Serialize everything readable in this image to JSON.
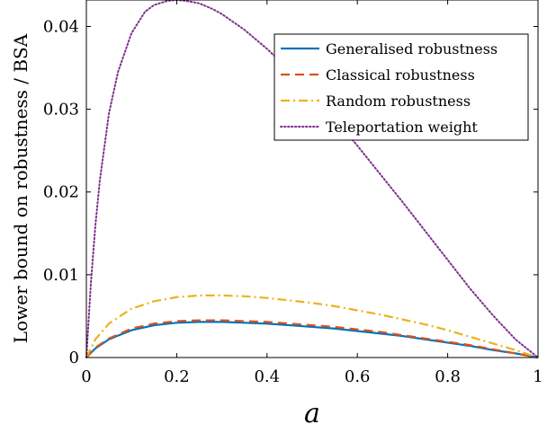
{
  "chart_data": {
    "type": "line",
    "xlabel": "a",
    "ylabel": "Lower bound on robustness / BSA",
    "xlim": [
      0,
      1
    ],
    "ylim": [
      0,
      0.0432
    ],
    "xticks": [
      0,
      0.2,
      0.4,
      0.6,
      0.8,
      1
    ],
    "xtick_labels": [
      "0",
      "0.2",
      "0.4",
      "0.6",
      "0.8",
      "1"
    ],
    "yticks": [
      0,
      0.01,
      0.02,
      0.03,
      0.04
    ],
    "ytick_labels": [
      "0",
      "0.01",
      "0.02",
      "0.03",
      "0.04"
    ],
    "grid": false,
    "legend_position": "top-right",
    "series": [
      {
        "name": "Generalised robustness",
        "color": "#0072BD",
        "dash": "solid",
        "x": [
          0,
          0.02,
          0.05,
          0.1,
          0.15,
          0.2,
          0.25,
          0.3,
          0.35,
          0.4,
          0.45,
          0.5,
          0.55,
          0.6,
          0.65,
          0.7,
          0.75,
          0.8,
          0.85,
          0.9,
          0.95,
          1
        ],
        "y": [
          0,
          0.0011,
          0.0022,
          0.0033,
          0.0039,
          0.0042,
          0.0043,
          0.0043,
          0.0042,
          0.0041,
          0.0039,
          0.0037,
          0.0035,
          0.0032,
          0.0029,
          0.0026,
          0.0022,
          0.0018,
          0.0014,
          0.0009,
          0.0005,
          0
        ]
      },
      {
        "name": "Classical robustness",
        "color": "#D95319",
        "dash": "dashed",
        "x": [
          0,
          0.02,
          0.05,
          0.1,
          0.15,
          0.2,
          0.25,
          0.3,
          0.35,
          0.4,
          0.45,
          0.5,
          0.55,
          0.6,
          0.65,
          0.7,
          0.75,
          0.8,
          0.85,
          0.9,
          0.95,
          1
        ],
        "y": [
          0,
          0.0012,
          0.0023,
          0.0035,
          0.0041,
          0.0044,
          0.0045,
          0.0045,
          0.0044,
          0.0043,
          0.0041,
          0.0039,
          0.0037,
          0.0034,
          0.0031,
          0.0027,
          0.0023,
          0.0019,
          0.0015,
          0.001,
          0.0005,
          0
        ]
      },
      {
        "name": "Random robustness",
        "color": "#EDB120",
        "dash": "dashdot",
        "x": [
          0,
          0.02,
          0.05,
          0.1,
          0.15,
          0.2,
          0.25,
          0.3,
          0.35,
          0.4,
          0.45,
          0.5,
          0.55,
          0.6,
          0.65,
          0.7,
          0.75,
          0.8,
          0.85,
          0.9,
          0.95,
          1
        ],
        "y": [
          0,
          0.0022,
          0.0041,
          0.0059,
          0.0068,
          0.0073,
          0.0075,
          0.0075,
          0.0074,
          0.0072,
          0.0069,
          0.0066,
          0.0062,
          0.0057,
          0.0052,
          0.0046,
          0.004,
          0.0033,
          0.0025,
          0.0017,
          0.0009,
          0
        ]
      },
      {
        "name": "Teleportation weight",
        "color": "#7E2F8E",
        "dash": "dotted",
        "x": [
          0,
          0.01,
          0.02,
          0.03,
          0.05,
          0.07,
          0.1,
          0.13,
          0.15,
          0.18,
          0.2,
          0.22,
          0.25,
          0.28,
          0.3,
          0.35,
          0.4,
          0.45,
          0.5,
          0.55,
          0.6,
          0.65,
          0.7,
          0.75,
          0.8,
          0.85,
          0.9,
          0.95,
          1
        ],
        "y": [
          0,
          0.009,
          0.016,
          0.0215,
          0.0295,
          0.0345,
          0.0392,
          0.0418,
          0.0426,
          0.0431,
          0.0432,
          0.0431,
          0.0428,
          0.0421,
          0.0415,
          0.0396,
          0.0373,
          0.0347,
          0.0319,
          0.0288,
          0.0256,
          0.0222,
          0.0188,
          0.0153,
          0.0118,
          0.0083,
          0.0051,
          0.0022,
          0
        ]
      }
    ]
  }
}
